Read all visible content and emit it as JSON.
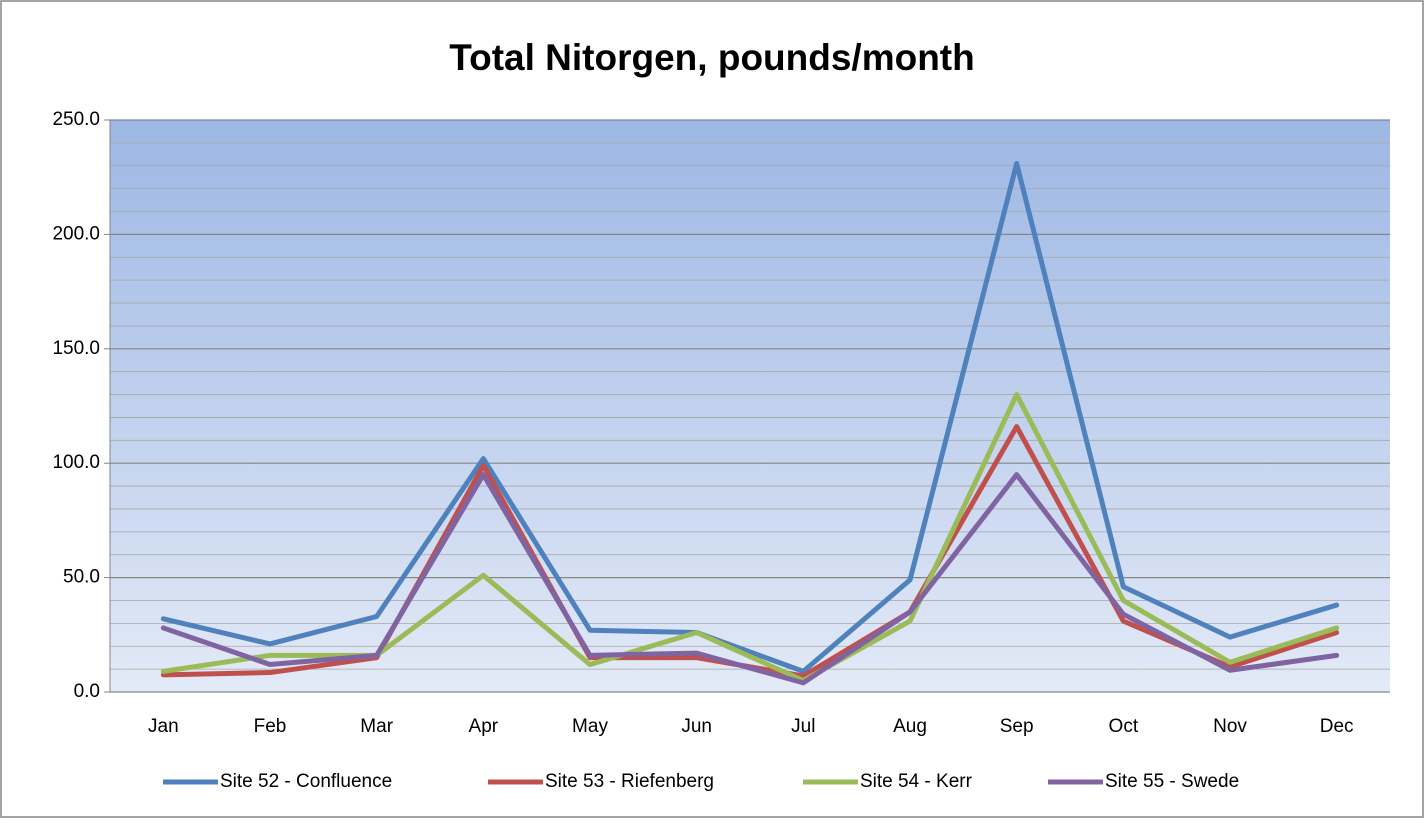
{
  "chart_data": {
    "type": "line",
    "title": "Total Nitorgen, pounds/month",
    "categories": [
      "Jan",
      "Feb",
      "Mar",
      "Apr",
      "May",
      "Jun",
      "Jul",
      "Aug",
      "Sep",
      "Oct",
      "Nov",
      "Dec"
    ],
    "series": [
      {
        "name": "Site 52 - Confluence",
        "color": "#4f81bd",
        "values": [
          32,
          21,
          33,
          102,
          27,
          26,
          9,
          49,
          231,
          46,
          24,
          38
        ]
      },
      {
        "name": "Site 53 - Riefenberg",
        "color": "#c0504d",
        "values": [
          7.5,
          8.5,
          15,
          99,
          15,
          15,
          7,
          35,
          116,
          31,
          11,
          26
        ]
      },
      {
        "name": "Site 54 - Kerr",
        "color": "#9bbb59",
        "values": [
          9,
          16,
          16,
          51,
          12,
          26,
          5,
          31,
          130,
          40,
          13,
          28
        ]
      },
      {
        "name": "Site 55 - Swede",
        "color": "#8064a2",
        "values": [
          28,
          12,
          16,
          95,
          16,
          17,
          4,
          35,
          95,
          34,
          9.5,
          16
        ]
      }
    ],
    "ylim": [
      0,
      250
    ],
    "yticks": [
      {
        "value": 0,
        "label": "0.0"
      },
      {
        "value": 50,
        "label": "50.0"
      },
      {
        "value": 100,
        "label": "100.0"
      },
      {
        "value": 150,
        "label": "150.0"
      },
      {
        "value": 200,
        "label": "200.0"
      },
      {
        "value": 250,
        "label": "250.0"
      }
    ],
    "yminorticks": [
      10,
      20,
      30,
      40,
      60,
      70,
      80,
      90,
      110,
      120,
      130,
      140,
      160,
      170,
      180,
      190,
      210,
      220,
      230,
      240
    ],
    "grid": true,
    "legend": "bottom"
  }
}
